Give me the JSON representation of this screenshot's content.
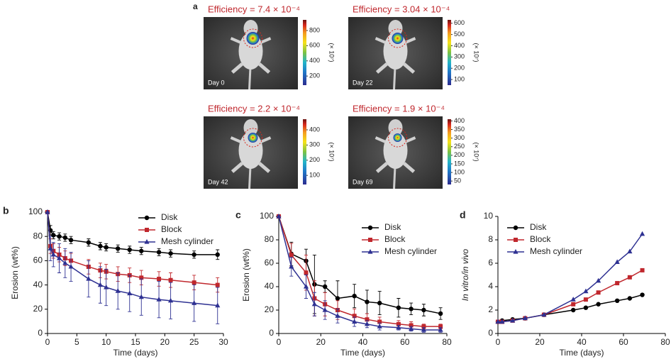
{
  "figure_a": {
    "label": "a",
    "images": [
      {
        "efficiency": "Efficiency = 7.4 × 10⁻⁴",
        "day": "Day 0",
        "unit": "(× 10⁷)",
        "colorbar_lim": [
          80,
          940
        ],
        "colorbar_ticks": [
          800,
          600,
          400,
          200
        ]
      },
      {
        "efficiency": "Efficiency = 3.04 × 10⁻⁴",
        "day": "Day 22",
        "unit": "(× 10⁷)",
        "colorbar_lim": [
          50,
          630
        ],
        "colorbar_ticks": [
          600,
          500,
          400,
          300,
          200,
          100
        ]
      },
      {
        "efficiency": "Efficiency = 2.2 × 10⁻⁴",
        "day": "Day 42",
        "unit": "(× 10⁷)",
        "colorbar_lim": [
          40,
          470
        ],
        "colorbar_ticks": [
          400,
          300,
          200,
          100
        ]
      },
      {
        "efficiency": "Efficiency = 1.9 × 10⁻⁴",
        "day": "Day 69",
        "unit": "(× 10⁷)",
        "colorbar_lim": [
          30,
          410
        ],
        "colorbar_ticks": [
          400,
          350,
          300,
          250,
          200,
          150,
          100,
          50
        ]
      }
    ]
  },
  "chart_data": [
    {
      "type": "line",
      "panel": "b",
      "x_label": "Time (days)",
      "y_label": "Erosion (wt%)",
      "legend": "upper right",
      "xlim": [
        0,
        30
      ],
      "xticks": [
        0,
        5,
        10,
        15,
        20,
        25,
        30
      ],
      "ylim": [
        0,
        100
      ],
      "yticks": [
        0,
        20,
        40,
        60,
        80,
        100
      ],
      "x": [
        0,
        0.5,
        1,
        2,
        3,
        4,
        7,
        9,
        10,
        12,
        14,
        16,
        19,
        21,
        25,
        29
      ],
      "series": [
        {
          "name": "Disk",
          "color": "#000000",
          "marker": "circle",
          "values": [
            100,
            85,
            81,
            80,
            79,
            77,
            75,
            72,
            71,
            70,
            69,
            68,
            67,
            66,
            65,
            65
          ],
          "errors": [
            0,
            4,
            3,
            3,
            3,
            3,
            3,
            3,
            3,
            3,
            3,
            3,
            3,
            3,
            3,
            4
          ]
        },
        {
          "name": "Block",
          "color": "#c0272d",
          "marker": "square",
          "values": [
            100,
            72,
            68,
            65,
            62,
            60,
            55,
            52,
            51,
            49,
            48,
            46,
            45,
            44,
            42,
            40
          ],
          "errors": [
            0,
            6,
            6,
            6,
            6,
            6,
            6,
            6,
            6,
            6,
            6,
            6,
            6,
            6,
            6,
            6
          ]
        },
        {
          "name": "Mesh cylinder",
          "color": "#2e3192",
          "marker": "triangle",
          "values": [
            100,
            70,
            65,
            62,
            58,
            55,
            45,
            40,
            38,
            35,
            33,
            30,
            28,
            27,
            25,
            23
          ],
          "errors": [
            0,
            10,
            10,
            12,
            12,
            12,
            15,
            15,
            15,
            15,
            15,
            15,
            15,
            15,
            15,
            15
          ]
        }
      ]
    },
    {
      "type": "line",
      "panel": "c",
      "x_label": "Time (days)",
      "y_label": "Erosion (wt%)",
      "legend": "upper right",
      "xlim": [
        0,
        80
      ],
      "xticks": [
        0,
        20,
        40,
        60,
        80
      ],
      "ylim": [
        0,
        100
      ],
      "yticks": [
        0,
        20,
        40,
        60,
        80,
        100
      ],
      "x": [
        0,
        6,
        13,
        17,
        22,
        28,
        36,
        42,
        48,
        57,
        63,
        69,
        77
      ],
      "series": [
        {
          "name": "Disk",
          "color": "#000000",
          "marker": "circle",
          "values": [
            100,
            68,
            62,
            42,
            40,
            30,
            32,
            27,
            26,
            22,
            21,
            20,
            17
          ],
          "errors": [
            0,
            10,
            10,
            25,
            5,
            15,
            10,
            10,
            10,
            8,
            5,
            5,
            5
          ]
        },
        {
          "name": "Block",
          "color": "#c0272d",
          "marker": "square",
          "values": [
            100,
            67,
            52,
            30,
            25,
            20,
            15,
            12,
            10,
            8,
            7,
            6,
            6
          ],
          "errors": [
            0,
            10,
            15,
            15,
            10,
            8,
            6,
            5,
            4,
            3,
            3,
            2,
            2
          ]
        },
        {
          "name": "Mesh cylinder",
          "color": "#2e3192",
          "marker": "triangle",
          "values": [
            100,
            57,
            40,
            25,
            20,
            15,
            10,
            8,
            6,
            5,
            4,
            3,
            3
          ],
          "errors": [
            0,
            8,
            10,
            10,
            8,
            6,
            4,
            3,
            3,
            2,
            2,
            2,
            2
          ]
        }
      ]
    },
    {
      "type": "line",
      "panel": "d",
      "x_label": "Time (days)",
      "y_label": "In vitro/in vivo",
      "legend": "upper left",
      "xlim": [
        0,
        80
      ],
      "xticks": [
        0,
        20,
        40,
        60,
        80
      ],
      "ylim": [
        0,
        10
      ],
      "yticks": [
        0,
        2,
        4,
        6,
        8,
        10
      ],
      "x": [
        0,
        2,
        7,
        13,
        22,
        36,
        42,
        48,
        57,
        63,
        69
      ],
      "series": [
        {
          "name": "Disk",
          "color": "#000000",
          "marker": "circle",
          "values": [
            1,
            1.1,
            1.2,
            1.3,
            1.6,
            2,
            2.2,
            2.5,
            2.8,
            3,
            3.3
          ]
        },
        {
          "name": "Block",
          "color": "#c0272d",
          "marker": "square",
          "values": [
            1,
            1,
            1.1,
            1.3,
            1.6,
            2.5,
            2.9,
            3.5,
            4.3,
            4.8,
            5.4
          ]
        },
        {
          "name": "Mesh cylinder",
          "color": "#2e3192",
          "marker": "triangle",
          "values": [
            1,
            1,
            1.1,
            1.3,
            1.6,
            2.9,
            3.6,
            4.5,
            6.1,
            7,
            8.5
          ]
        }
      ]
    }
  ]
}
